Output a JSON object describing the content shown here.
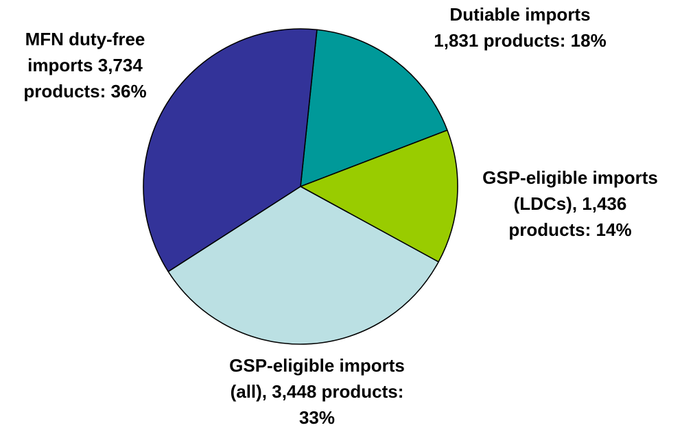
{
  "chart_data": {
    "type": "pie",
    "title": "",
    "slices": [
      {
        "label": "Dutiable imports\n1,831 products: 18%",
        "value": 1831,
        "percent": 18,
        "color": "#009999"
      },
      {
        "label": "GSP-eligible imports\n(LDCs), 1,436\nproducts: 14%",
        "value": 1436,
        "percent": 14,
        "color": "#99CC00"
      },
      {
        "label": "GSP-eligible imports\n(all), 3,448 products:\n33%",
        "value": 3448,
        "percent": 33,
        "color": "#BBE0E3"
      },
      {
        "label": "MFN duty-free\nimports 3,734\nproducts: 36%",
        "value": 3734,
        "percent": 36,
        "color": "#333399"
      }
    ],
    "start_angle_deg": 6,
    "direction": "clockwise",
    "legend": "none"
  }
}
